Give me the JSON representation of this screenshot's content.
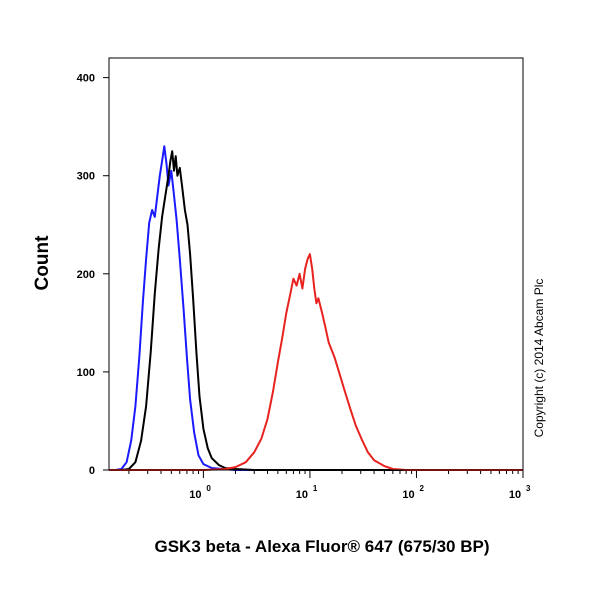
{
  "chart_data": {
    "type": "line",
    "xlabel": "GSK3 beta - Alexa Fluor® 647 (675/30 BP)",
    "ylabel": "Count",
    "xscale": "log",
    "xlim": [
      0.13,
      1000
    ],
    "ylim": [
      0,
      420
    ],
    "x_ticks": [
      {
        "value": 1,
        "base": "10",
        "exp": "0"
      },
      {
        "value": 10,
        "base": "10",
        "exp": "1"
      },
      {
        "value": 100,
        "base": "10",
        "exp": "2"
      },
      {
        "value": 1000,
        "base": "10",
        "exp": "3"
      }
    ],
    "y_ticks": [
      0,
      100,
      200,
      300,
      400
    ],
    "grid": false,
    "annotation": "Copyright (c) 2014 Abcam Plc",
    "series": [
      {
        "color": "#1a1aff",
        "points": [
          [
            0.13,
            0
          ],
          [
            0.15,
            0
          ],
          [
            0.17,
            1
          ],
          [
            0.19,
            8
          ],
          [
            0.21,
            30
          ],
          [
            0.23,
            65
          ],
          [
            0.25,
            115
          ],
          [
            0.27,
            170
          ],
          [
            0.29,
            215
          ],
          [
            0.31,
            252
          ],
          [
            0.33,
            265
          ],
          [
            0.35,
            258
          ],
          [
            0.37,
            280
          ],
          [
            0.39,
            300
          ],
          [
            0.41,
            315
          ],
          [
            0.43,
            330
          ],
          [
            0.45,
            312
          ],
          [
            0.47,
            290
          ],
          [
            0.5,
            305
          ],
          [
            0.53,
            280
          ],
          [
            0.56,
            255
          ],
          [
            0.6,
            215
          ],
          [
            0.65,
            165
          ],
          [
            0.7,
            115
          ],
          [
            0.75,
            72
          ],
          [
            0.82,
            38
          ],
          [
            0.9,
            15
          ],
          [
            1.0,
            6
          ],
          [
            1.2,
            2
          ],
          [
            1.5,
            1
          ],
          [
            2,
            0
          ],
          [
            5,
            0
          ],
          [
            20,
            0
          ],
          [
            100,
            0
          ],
          [
            1000,
            0
          ]
        ]
      },
      {
        "color": "#000000",
        "points": [
          [
            0.13,
            0
          ],
          [
            0.17,
            0
          ],
          [
            0.2,
            1
          ],
          [
            0.23,
            8
          ],
          [
            0.26,
            30
          ],
          [
            0.29,
            65
          ],
          [
            0.32,
            120
          ],
          [
            0.35,
            180
          ],
          [
            0.38,
            225
          ],
          [
            0.41,
            258
          ],
          [
            0.44,
            280
          ],
          [
            0.47,
            300
          ],
          [
            0.49,
            315
          ],
          [
            0.51,
            325
          ],
          [
            0.53,
            305
          ],
          [
            0.55,
            320
          ],
          [
            0.57,
            300
          ],
          [
            0.6,
            308
          ],
          [
            0.63,
            290
          ],
          [
            0.67,
            265
          ],
          [
            0.71,
            250
          ],
          [
            0.75,
            220
          ],
          [
            0.8,
            175
          ],
          [
            0.86,
            120
          ],
          [
            0.92,
            75
          ],
          [
            1.0,
            42
          ],
          [
            1.1,
            22
          ],
          [
            1.2,
            12
          ],
          [
            1.4,
            5
          ],
          [
            1.6,
            2
          ],
          [
            2,
            1
          ],
          [
            3,
            0
          ],
          [
            10,
            0
          ],
          [
            100,
            0
          ],
          [
            1000,
            0
          ]
        ]
      },
      {
        "color": "#e8231f",
        "points": [
          [
            0.13,
            0
          ],
          [
            1,
            0
          ],
          [
            1.6,
            1
          ],
          [
            2,
            3
          ],
          [
            2.5,
            8
          ],
          [
            3,
            18
          ],
          [
            3.5,
            32
          ],
          [
            4,
            52
          ],
          [
            4.5,
            80
          ],
          [
            5,
            110
          ],
          [
            5.5,
            135
          ],
          [
            6,
            160
          ],
          [
            6.5,
            178
          ],
          [
            7,
            195
          ],
          [
            7.5,
            188
          ],
          [
            8,
            200
          ],
          [
            8.5,
            185
          ],
          [
            9,
            205
          ],
          [
            9.5,
            215
          ],
          [
            10,
            220
          ],
          [
            10.5,
            205
          ],
          [
            11,
            185
          ],
          [
            11.5,
            170
          ],
          [
            12,
            175
          ],
          [
            13,
            160
          ],
          [
            14,
            145
          ],
          [
            15,
            130
          ],
          [
            17,
            115
          ],
          [
            19,
            98
          ],
          [
            21,
            82
          ],
          [
            24,
            62
          ],
          [
            27,
            45
          ],
          [
            31,
            30
          ],
          [
            35,
            18
          ],
          [
            40,
            10
          ],
          [
            50,
            4
          ],
          [
            60,
            1
          ],
          [
            80,
            0
          ],
          [
            1000,
            0
          ]
        ]
      }
    ]
  }
}
